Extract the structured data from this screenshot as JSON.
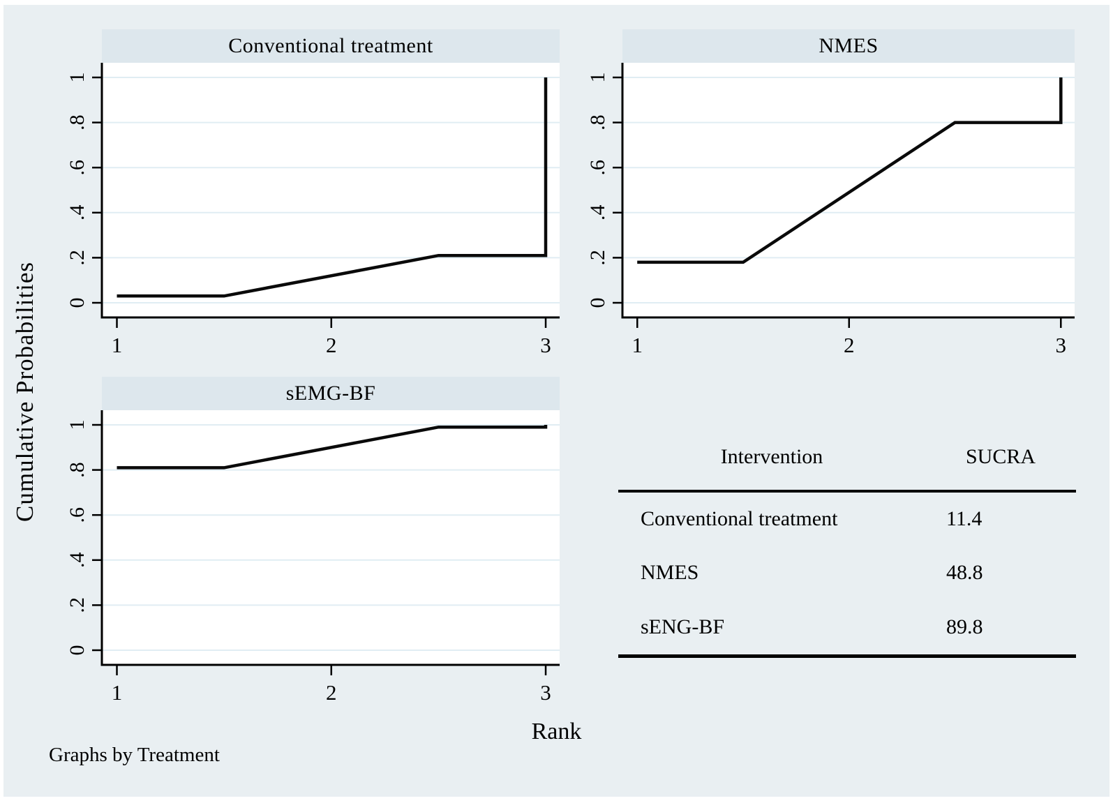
{
  "figure": {
    "ylabel": "Cumulative Probabilities",
    "xlabel": "Rank",
    "note": "Graphs by Treatment"
  },
  "colors": {
    "background": "#e9eff2",
    "title_band": "#dde7ed",
    "plot_bg": "#ffffff",
    "grid": "#e0edf3",
    "axis": "#000000",
    "line": "#0a0a0a"
  },
  "chart_data": [
    {
      "type": "line",
      "title": "Conventional treatment",
      "x": [
        1,
        1.5,
        2.5,
        3,
        3
      ],
      "y": [
        0.03,
        0.03,
        0.21,
        0.21,
        1.0
      ],
      "rank_points": {
        "rank1": 0.03,
        "rank2": 0.21,
        "rank3": 1.0
      },
      "xticks": [
        1,
        2,
        3
      ],
      "xtick_labels": [
        "1",
        "2",
        "3"
      ],
      "yticks": [
        0,
        0.2,
        0.4,
        0.6,
        0.8,
        1
      ],
      "ytick_labels": [
        "0",
        ".2",
        ".4",
        ".6",
        ".8",
        "1"
      ],
      "xlim": [
        0.93,
        3.065
      ],
      "ylim": [
        -0.065,
        1.065
      ],
      "grid": true
    },
    {
      "type": "line",
      "title": "NMES",
      "x": [
        1,
        1.5,
        2.5,
        3,
        3
      ],
      "y": [
        0.18,
        0.18,
        0.8,
        0.8,
        1.0
      ],
      "rank_points": {
        "rank1": 0.18,
        "rank2": 0.8,
        "rank3": 1.0
      },
      "xticks": [
        1,
        2,
        3
      ],
      "xtick_labels": [
        "1",
        "2",
        "3"
      ],
      "yticks": [
        0,
        0.2,
        0.4,
        0.6,
        0.8,
        1
      ],
      "ytick_labels": [
        "0",
        ".2",
        ".4",
        ".6",
        ".8",
        "1"
      ],
      "xlim": [
        0.93,
        3.065
      ],
      "ylim": [
        -0.065,
        1.065
      ],
      "grid": true
    },
    {
      "type": "line",
      "title": "sEMG-BF",
      "x": [
        1,
        1.5,
        2.5,
        3,
        3
      ],
      "y": [
        0.81,
        0.81,
        0.99,
        0.99,
        1.0
      ],
      "rank_points": {
        "rank1": 0.81,
        "rank2": 0.99,
        "rank3": 1.0
      },
      "xticks": [
        1,
        2,
        3
      ],
      "xtick_labels": [
        "1",
        "2",
        "3"
      ],
      "yticks": [
        0,
        0.2,
        0.4,
        0.6,
        0.8,
        1
      ],
      "ytick_labels": [
        "0",
        ".2",
        ".4",
        ".6",
        ".8",
        "1"
      ],
      "xlim": [
        0.93,
        3.065
      ],
      "ylim": [
        -0.065,
        1.065
      ],
      "grid": true
    },
    {
      "type": "table",
      "columns": [
        "Intervention",
        "SUCRA"
      ],
      "rows": [
        [
          "Conventional treatment",
          "11.4"
        ],
        [
          "NMES",
          "48.8"
        ],
        [
          "sENG-BF",
          "89.8"
        ]
      ]
    }
  ]
}
